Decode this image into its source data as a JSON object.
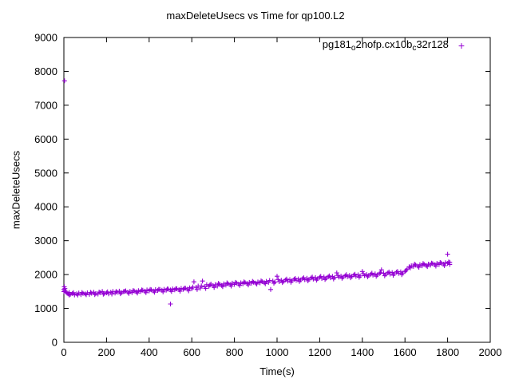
{
  "page": {
    "background": "#ffffff"
  },
  "chart_data": {
    "type": "scatter",
    "title": "maxDeleteUsecs vs Time for qp100.L2",
    "xlabel": "Time(s)",
    "ylabel": "maxDeleteUsecs",
    "xlim": [
      0,
      2000
    ],
    "ylim": [
      0,
      9000
    ],
    "xticks": [
      0,
      200,
      400,
      600,
      800,
      1000,
      1200,
      1400,
      1600,
      1800,
      2000
    ],
    "yticks": [
      0,
      1000,
      2000,
      3000,
      4000,
      5000,
      6000,
      7000,
      8000,
      9000
    ],
    "grid": false,
    "legend_position": "top-right-inside",
    "series": [
      {
        "name": "pg181_o2nofp.cx10b_c32r128",
        "name_parts": [
          {
            "t": "pg181"
          },
          {
            "t": "o",
            "sub": true
          },
          {
            "t": "2nofp.cx10b"
          },
          {
            "t": "c",
            "sub": true
          },
          {
            "t": "32r128"
          }
        ],
        "marker": "plus",
        "marker_size": 3,
        "color": "#9400D3",
        "points": [
          [
            0,
            1560
          ],
          [
            0,
            1495
          ],
          [
            2,
            1640
          ],
          [
            3,
            7720
          ],
          [
            5,
            1520
          ],
          [
            10,
            1480
          ],
          [
            15,
            1455
          ],
          [
            20,
            1430
          ],
          [
            25,
            1470
          ],
          [
            30,
            1415
          ],
          [
            40,
            1440
          ],
          [
            50,
            1400
          ],
          [
            60,
            1430
          ],
          [
            70,
            1455
          ],
          [
            80,
            1410
          ],
          [
            90,
            1445
          ],
          [
            100,
            1430
          ],
          [
            110,
            1460
          ],
          [
            120,
            1415
          ],
          [
            130,
            1450
          ],
          [
            140,
            1480
          ],
          [
            150,
            1440
          ],
          [
            160,
            1425
          ],
          [
            170,
            1465
          ],
          [
            180,
            1500
          ],
          [
            190,
            1445
          ],
          [
            200,
            1460
          ],
          [
            210,
            1430
          ],
          [
            220,
            1475
          ],
          [
            230,
            1500
          ],
          [
            240,
            1455
          ],
          [
            250,
            1480
          ],
          [
            260,
            1510
          ],
          [
            270,
            1465
          ],
          [
            280,
            1495
          ],
          [
            290,
            1520
          ],
          [
            300,
            1480
          ],
          [
            310,
            1505
          ],
          [
            320,
            1470
          ],
          [
            330,
            1515
          ],
          [
            340,
            1490
          ],
          [
            350,
            1525
          ],
          [
            360,
            1500
          ],
          [
            370,
            1535
          ],
          [
            380,
            1510
          ],
          [
            390,
            1545
          ],
          [
            400,
            1520
          ],
          [
            410,
            1550
          ],
          [
            420,
            1515
          ],
          [
            430,
            1555
          ],
          [
            440,
            1530
          ],
          [
            450,
            1560
          ],
          [
            460,
            1535
          ],
          [
            470,
            1565
          ],
          [
            480,
            1540
          ],
          [
            490,
            1570
          ],
          [
            500,
            1130
          ],
          [
            500,
            1545
          ],
          [
            510,
            1575
          ],
          [
            520,
            1550
          ],
          [
            530,
            1580
          ],
          [
            540,
            1555
          ],
          [
            550,
            1590
          ],
          [
            560,
            1565
          ],
          [
            570,
            1600
          ],
          [
            580,
            1570
          ],
          [
            590,
            1610
          ],
          [
            600,
            1580
          ],
          [
            610,
            1785
          ],
          [
            620,
            1620
          ],
          [
            630,
            1660
          ],
          [
            640,
            1600
          ],
          [
            650,
            1810
          ],
          [
            660,
            1640
          ],
          [
            670,
            1700
          ],
          [
            680,
            1655
          ],
          [
            690,
            1720
          ],
          [
            700,
            1670
          ],
          [
            710,
            1700
          ],
          [
            720,
            1660
          ],
          [
            730,
            1710
          ],
          [
            740,
            1680
          ],
          [
            750,
            1725
          ],
          [
            760,
            1690
          ],
          [
            770,
            1730
          ],
          [
            780,
            1700
          ],
          [
            790,
            1745
          ],
          [
            800,
            1710
          ],
          [
            810,
            1750
          ],
          [
            820,
            1720
          ],
          [
            830,
            1755
          ],
          [
            840,
            1730
          ],
          [
            850,
            1760
          ],
          [
            860,
            1735
          ],
          [
            870,
            1770
          ],
          [
            880,
            1745
          ],
          [
            890,
            1775
          ],
          [
            900,
            1750
          ],
          [
            910,
            1780
          ],
          [
            920,
            1755
          ],
          [
            930,
            1790
          ],
          [
            940,
            1760
          ],
          [
            950,
            1800
          ],
          [
            960,
            1770
          ],
          [
            970,
            1560
          ],
          [
            980,
            1810
          ],
          [
            990,
            1780
          ],
          [
            1000,
            1950
          ],
          [
            1010,
            1790
          ],
          [
            1020,
            1830
          ],
          [
            1030,
            1800
          ],
          [
            1040,
            1840
          ],
          [
            1050,
            1810
          ],
          [
            1060,
            1850
          ],
          [
            1070,
            1820
          ],
          [
            1080,
            1860
          ],
          [
            1090,
            1830
          ],
          [
            1100,
            1870
          ],
          [
            1110,
            1840
          ],
          [
            1120,
            1880
          ],
          [
            1130,
            1850
          ],
          [
            1140,
            1890
          ],
          [
            1150,
            1855
          ],
          [
            1160,
            1900
          ],
          [
            1170,
            1865
          ],
          [
            1180,
            1910
          ],
          [
            1190,
            1875
          ],
          [
            1200,
            1920
          ],
          [
            1210,
            1885
          ],
          [
            1220,
            1930
          ],
          [
            1230,
            1895
          ],
          [
            1240,
            1935
          ],
          [
            1250,
            1905
          ],
          [
            1260,
            1945
          ],
          [
            1270,
            1915
          ],
          [
            1280,
            2050
          ],
          [
            1290,
            1925
          ],
          [
            1300,
            1955
          ],
          [
            1310,
            1930
          ],
          [
            1320,
            1965
          ],
          [
            1330,
            1940
          ],
          [
            1340,
            1975
          ],
          [
            1350,
            1945
          ],
          [
            1360,
            1985
          ],
          [
            1370,
            1950
          ],
          [
            1380,
            1990
          ],
          [
            1390,
            1960
          ],
          [
            1400,
            2090
          ],
          [
            1410,
            1970
          ],
          [
            1420,
            2000
          ],
          [
            1430,
            1975
          ],
          [
            1440,
            2010
          ],
          [
            1450,
            1985
          ],
          [
            1460,
            2020
          ],
          [
            1470,
            1990
          ],
          [
            1480,
            2030
          ],
          [
            1490,
            2140
          ],
          [
            1500,
            2040
          ],
          [
            1510,
            2010
          ],
          [
            1520,
            2050
          ],
          [
            1530,
            2015
          ],
          [
            1540,
            2060
          ],
          [
            1550,
            2025
          ],
          [
            1560,
            2070
          ],
          [
            1570,
            2035
          ],
          [
            1580,
            2080
          ],
          [
            1590,
            2045
          ],
          [
            1600,
            2090
          ],
          [
            1610,
            2160
          ],
          [
            1620,
            2230
          ],
          [
            1630,
            2260
          ],
          [
            1640,
            2240
          ],
          [
            1650,
            2280
          ],
          [
            1660,
            2250
          ],
          [
            1670,
            2290
          ],
          [
            1680,
            2260
          ],
          [
            1690,
            2300
          ],
          [
            1700,
            2270
          ],
          [
            1710,
            2310
          ],
          [
            1720,
            2280
          ],
          [
            1730,
            2320
          ],
          [
            1740,
            2290
          ],
          [
            1750,
            2330
          ],
          [
            1760,
            2300
          ],
          [
            1770,
            2340
          ],
          [
            1780,
            2310
          ],
          [
            1790,
            2350
          ],
          [
            1800,
            2600
          ],
          [
            1800,
            2330
          ],
          [
            1810,
            2360
          ],
          [
            1810,
            2300
          ],
          [
            5,
            1585
          ],
          [
            25,
            1395
          ],
          [
            45,
            1465
          ],
          [
            65,
            1395
          ],
          [
            85,
            1470
          ],
          [
            105,
            1405
          ],
          [
            125,
            1475
          ],
          [
            145,
            1410
          ],
          [
            165,
            1485
          ],
          [
            185,
            1420
          ],
          [
            205,
            1490
          ],
          [
            225,
            1425
          ],
          [
            245,
            1500
          ],
          [
            265,
            1435
          ],
          [
            285,
            1505
          ],
          [
            305,
            1445
          ],
          [
            325,
            1530
          ],
          [
            345,
            1455
          ],
          [
            365,
            1545
          ],
          [
            385,
            1465
          ],
          [
            405,
            1560
          ],
          [
            425,
            1480
          ],
          [
            445,
            1565
          ],
          [
            465,
            1490
          ],
          [
            485,
            1575
          ],
          [
            505,
            1500
          ],
          [
            525,
            1585
          ],
          [
            545,
            1510
          ],
          [
            565,
            1595
          ],
          [
            585,
            1520
          ],
          [
            605,
            1630
          ],
          [
            625,
            1560
          ],
          [
            645,
            1665
          ],
          [
            665,
            1590
          ],
          [
            685,
            1690
          ],
          [
            705,
            1620
          ],
          [
            725,
            1740
          ],
          [
            745,
            1645
          ],
          [
            765,
            1755
          ],
          [
            785,
            1660
          ],
          [
            805,
            1770
          ],
          [
            825,
            1680
          ],
          [
            845,
            1785
          ],
          [
            865,
            1695
          ],
          [
            885,
            1800
          ],
          [
            905,
            1720
          ],
          [
            925,
            1815
          ],
          [
            945,
            1730
          ],
          [
            965,
            1825
          ],
          [
            985,
            1745
          ],
          [
            1005,
            1855
          ],
          [
            1025,
            1765
          ],
          [
            1045,
            1865
          ],
          [
            1065,
            1775
          ],
          [
            1085,
            1885
          ],
          [
            1105,
            1795
          ],
          [
            1125,
            1905
          ],
          [
            1145,
            1815
          ],
          [
            1165,
            1925
          ],
          [
            1185,
            1835
          ],
          [
            1205,
            1945
          ],
          [
            1225,
            1855
          ],
          [
            1245,
            1960
          ],
          [
            1265,
            1870
          ],
          [
            1285,
            1975
          ],
          [
            1305,
            1890
          ],
          [
            1325,
            1995
          ],
          [
            1345,
            1905
          ],
          [
            1365,
            2010
          ],
          [
            1385,
            1920
          ],
          [
            1405,
            2025
          ],
          [
            1425,
            1935
          ],
          [
            1445,
            2040
          ],
          [
            1465,
            1950
          ],
          [
            1485,
            2055
          ],
          [
            1505,
            1965
          ],
          [
            1525,
            2075
          ],
          [
            1545,
            1980
          ],
          [
            1565,
            2090
          ],
          [
            1585,
            1995
          ],
          [
            1605,
            2120
          ],
          [
            1625,
            2195
          ],
          [
            1645,
            2310
          ],
          [
            1665,
            2215
          ],
          [
            1685,
            2325
          ],
          [
            1705,
            2235
          ],
          [
            1725,
            2340
          ],
          [
            1745,
            2250
          ],
          [
            1765,
            2355
          ],
          [
            1785,
            2265
          ],
          [
            1805,
            2370
          ]
        ]
      }
    ]
  }
}
